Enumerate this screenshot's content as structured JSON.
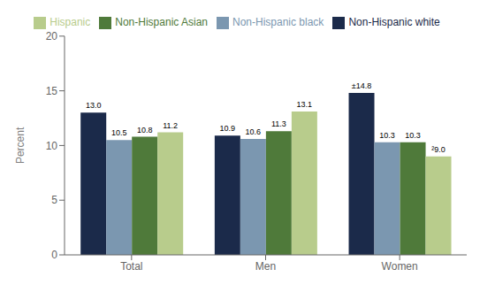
{
  "chart_data": {
    "type": "bar",
    "categories": [
      "Total",
      "Men",
      "Women"
    ],
    "series": [
      {
        "name": "Non-Hispanic white",
        "color": "#1b2a4a",
        "values": [
          13.0,
          10.9,
          14.8
        ],
        "value_labels": [
          "13.0",
          "10.9",
          "±14.8"
        ]
      },
      {
        "name": "Non-Hispanic black",
        "color": "#7b97b0",
        "values": [
          10.5,
          10.6,
          10.3
        ],
        "value_labels": [
          "10.5",
          "10.6",
          "10.3"
        ]
      },
      {
        "name": "Non-Hispanic Asian",
        "color": "#4f7a3a",
        "values": [
          10.8,
          11.3,
          10.3
        ],
        "value_labels": [
          "10.8",
          "11.3",
          "10.3"
        ]
      },
      {
        "name": "Hispanic",
        "color": "#b8cc8c",
        "values": [
          11.2,
          13.1,
          9.0
        ],
        "value_labels": [
          "11.2",
          "13.1",
          "²9.0"
        ]
      }
    ],
    "ylabel": "Percent",
    "ylim": [
      0,
      20
    ],
    "yticks": [
      0,
      5,
      10,
      15,
      20
    ],
    "grid": false,
    "legend": "top",
    "data_labels": true
  }
}
